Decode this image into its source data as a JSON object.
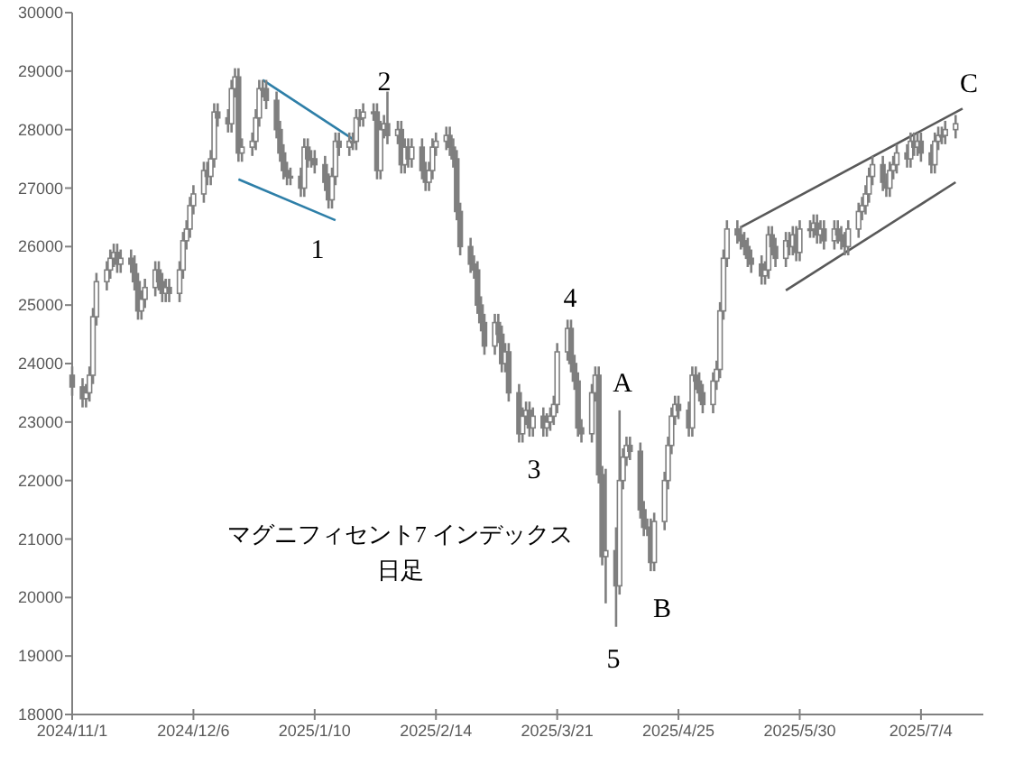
{
  "chart_data": {
    "type": "candlestick",
    "title": "マグニフィセント7 インデックス",
    "subtitle": "日足",
    "color": "#7f7f7f",
    "xlim": [
      "2024-11-01",
      "2025-07-22"
    ],
    "xticks": [
      {
        "value": "2024-11-01",
        "label": "2024/11/1"
      },
      {
        "value": "2024-12-06",
        "label": "2024/12/6"
      },
      {
        "value": "2025-01-10",
        "label": "2025/1/10"
      },
      {
        "value": "2025-02-14",
        "label": "2025/2/14"
      },
      {
        "value": "2025-03-21",
        "label": "2025/3/21"
      },
      {
        "value": "2025-04-25",
        "label": "2025/4/25"
      },
      {
        "value": "2025-05-30",
        "label": "2025/5/30"
      },
      {
        "value": "2025-07-04",
        "label": "2025/7/4"
      }
    ],
    "ylim": [
      18000,
      30000
    ],
    "yticks": [
      18000,
      19000,
      20000,
      21000,
      22000,
      23000,
      24000,
      25000,
      26000,
      27000,
      28000,
      29000,
      30000
    ],
    "x": [
      "2024-11-01",
      "2024-11-04",
      "2024-11-05",
      "2024-11-06",
      "2024-11-07",
      "2024-11-08",
      "2024-11-11",
      "2024-11-12",
      "2024-11-13",
      "2024-11-14",
      "2024-11-15",
      "2024-11-18",
      "2024-11-19",
      "2024-11-20",
      "2024-11-21",
      "2024-11-22",
      "2024-11-25",
      "2024-11-26",
      "2024-11-27",
      "2024-11-28",
      "2024-11-29",
      "2024-12-02",
      "2024-12-03",
      "2024-12-04",
      "2024-12-05",
      "2024-12-06",
      "2024-12-09",
      "2024-12-10",
      "2024-12-11",
      "2024-12-12",
      "2024-12-13",
      "2024-12-16",
      "2024-12-17",
      "2024-12-18",
      "2024-12-19",
      "2024-12-20",
      "2024-12-23",
      "2024-12-24",
      "2024-12-25",
      "2024-12-26",
      "2024-12-27",
      "2024-12-30",
      "2024-12-31",
      "2025-01-01",
      "2025-01-02",
      "2025-01-03",
      "2025-01-06",
      "2025-01-07",
      "2025-01-08",
      "2025-01-09",
      "2025-01-10",
      "2025-01-13",
      "2025-01-14",
      "2025-01-15",
      "2025-01-16",
      "2025-01-17",
      "2025-01-20",
      "2025-01-21",
      "2025-01-22",
      "2025-01-23",
      "2025-01-24",
      "2025-01-27",
      "2025-01-28",
      "2025-01-29",
      "2025-01-30",
      "2025-01-31",
      "2025-02-03",
      "2025-02-04",
      "2025-02-05",
      "2025-02-06",
      "2025-02-07",
      "2025-02-10",
      "2025-02-11",
      "2025-02-12",
      "2025-02-13",
      "2025-02-14",
      "2025-02-17",
      "2025-02-18",
      "2025-02-19",
      "2025-02-20",
      "2025-02-21",
      "2025-02-24",
      "2025-02-25",
      "2025-02-26",
      "2025-02-27",
      "2025-02-28",
      "2025-03-03",
      "2025-03-04",
      "2025-03-05",
      "2025-03-06",
      "2025-03-07",
      "2025-03-10",
      "2025-03-11",
      "2025-03-12",
      "2025-03-13",
      "2025-03-14",
      "2025-03-17",
      "2025-03-18",
      "2025-03-19",
      "2025-03-20",
      "2025-03-21",
      "2025-03-24",
      "2025-03-25",
      "2025-03-26",
      "2025-03-27",
      "2025-03-28",
      "2025-03-31",
      "2025-04-01",
      "2025-04-02",
      "2025-04-03",
      "2025-04-04",
      "2025-04-07",
      "2025-04-08",
      "2025-04-09",
      "2025-04-10",
      "2025-04-11",
      "2025-04-14",
      "2025-04-15",
      "2025-04-16",
      "2025-04-17",
      "2025-04-18",
      "2025-04-21",
      "2025-04-22",
      "2025-04-23",
      "2025-04-24",
      "2025-04-25",
      "2025-04-28",
      "2025-04-29",
      "2025-04-30",
      "2025-05-01",
      "2025-05-02",
      "2025-05-05",
      "2025-05-06",
      "2025-05-07",
      "2025-05-08",
      "2025-05-09",
      "2025-05-12",
      "2025-05-13",
      "2025-05-14",
      "2025-05-15",
      "2025-05-16",
      "2025-05-19",
      "2025-05-20",
      "2025-05-21",
      "2025-05-22",
      "2025-05-23",
      "2025-05-26",
      "2025-05-27",
      "2025-05-28",
      "2025-05-29",
      "2025-05-30",
      "2025-06-02",
      "2025-06-03",
      "2025-06-04",
      "2025-06-05",
      "2025-06-06",
      "2025-06-09",
      "2025-06-10",
      "2025-06-11",
      "2025-06-12",
      "2025-06-13",
      "2025-06-16",
      "2025-06-17",
      "2025-06-18",
      "2025-06-19",
      "2025-06-20",
      "2025-06-23",
      "2025-06-24",
      "2025-06-25",
      "2025-06-26",
      "2025-06-27",
      "2025-06-30",
      "2025-07-01",
      "2025-07-02",
      "2025-07-03",
      "2025-07-04",
      "2025-07-07",
      "2025-07-08",
      "2025-07-09",
      "2025-07-10",
      "2025-07-11",
      "2025-07-14"
    ],
    "ohlc": [
      [
        23800,
        23950,
        23450,
        23600
      ],
      [
        23600,
        23750,
        23250,
        23400
      ],
      [
        23400,
        23650,
        23250,
        23500
      ],
      [
        23500,
        23950,
        23350,
        23800
      ],
      [
        23800,
        24950,
        23650,
        24800
      ],
      [
        24800,
        25550,
        24650,
        25400
      ],
      [
        25400,
        25750,
        25250,
        25600
      ],
      [
        25600,
        25950,
        25450,
        25800
      ],
      [
        25800,
        26050,
        25650,
        25900
      ],
      [
        25900,
        26050,
        25550,
        25700
      ],
      [
        25700,
        25950,
        25550,
        25800
      ],
      [
        25800,
        25950,
        25550,
        25700
      ],
      [
        25700,
        25850,
        25250,
        25400
      ],
      [
        25400,
        25550,
        24750,
        24900
      ],
      [
        24900,
        25250,
        24750,
        25100
      ],
      [
        25100,
        25450,
        24950,
        25300
      ],
      [
        25300,
        25750,
        25150,
        25600
      ],
      [
        25600,
        25750,
        25250,
        25400
      ],
      [
        25400,
        25550,
        25050,
        25200
      ],
      [
        25200,
        25450,
        25050,
        25300
      ],
      [
        25300,
        25450,
        25050,
        25200
      ],
      [
        25200,
        25750,
        25050,
        25600
      ],
      [
        25600,
        26250,
        25450,
        26100
      ],
      [
        26100,
        26450,
        25950,
        26300
      ],
      [
        26300,
        26850,
        26150,
        26700
      ],
      [
        26700,
        27050,
        26550,
        26900
      ],
      [
        26900,
        27450,
        26750,
        27300
      ],
      [
        27300,
        27450,
        27050,
        27200
      ],
      [
        27200,
        27650,
        27050,
        27500
      ],
      [
        27500,
        28450,
        27350,
        28300
      ],
      [
        28300,
        28450,
        28050,
        28200
      ],
      [
        28200,
        28350,
        27950,
        28100
      ],
      [
        28100,
        28850,
        27950,
        28700
      ],
      [
        28700,
        29050,
        28550,
        28900
      ],
      [
        28900,
        29050,
        27450,
        27600
      ],
      [
        27600,
        27850,
        27450,
        27700
      ],
      [
        27700,
        27950,
        27550,
        27800
      ],
      [
        27800,
        28350,
        27650,
        28200
      ],
      [
        28200,
        28850,
        28050,
        28700
      ],
      [
        28700,
        28850,
        28550,
        28700
      ],
      [
        28700,
        28850,
        28350,
        28500
      ],
      [
        28500,
        28650,
        27850,
        28000
      ],
      [
        28000,
        28150,
        27450,
        27600
      ],
      [
        27600,
        27750,
        27150,
        27300
      ],
      [
        27300,
        27450,
        27050,
        27200
      ],
      [
        27200,
        27350,
        27050,
        27200
      ],
      [
        27200,
        27350,
        26850,
        27000
      ],
      [
        27000,
        27850,
        26850,
        27700
      ],
      [
        27700,
        27850,
        27350,
        27500
      ],
      [
        27500,
        27650,
        27350,
        27500
      ],
      [
        27500,
        27650,
        27250,
        27400
      ],
      [
        27400,
        27550,
        26950,
        27100
      ],
      [
        27100,
        27250,
        26650,
        26800
      ],
      [
        26800,
        27350,
        26650,
        27200
      ],
      [
        27200,
        27950,
        27050,
        27800
      ],
      [
        27800,
        27950,
        27550,
        27700
      ],
      [
        27700,
        27950,
        27550,
        27800
      ],
      [
        27800,
        27950,
        27650,
        27800
      ],
      [
        27800,
        28350,
        27650,
        28200
      ],
      [
        28200,
        28350,
        28050,
        28200
      ],
      [
        28200,
        28450,
        28050,
        28300
      ],
      [
        28300,
        28450,
        28150,
        28300
      ],
      [
        28300,
        28450,
        27150,
        27300
      ],
      [
        27300,
        28150,
        27150,
        28000
      ],
      [
        28000,
        28250,
        27850,
        28100
      ],
      [
        28100,
        28650,
        27750,
        27900
      ],
      [
        27900,
        28150,
        27750,
        28000
      ],
      [
        28000,
        28150,
        27250,
        27400
      ],
      [
        27400,
        27850,
        27250,
        27700
      ],
      [
        27700,
        27850,
        27350,
        27500
      ],
      [
        27500,
        27850,
        27350,
        27700
      ],
      [
        27700,
        27850,
        27150,
        27300
      ],
      [
        27300,
        27450,
        26950,
        27100
      ],
      [
        27100,
        27450,
        26950,
        27300
      ],
      [
        27300,
        27850,
        27150,
        27700
      ],
      [
        27700,
        27950,
        27550,
        27800
      ],
      [
        27800,
        28050,
        27650,
        27900
      ],
      [
        27900,
        28050,
        27550,
        27700
      ],
      [
        27700,
        27850,
        27350,
        27500
      ],
      [
        27500,
        27650,
        26450,
        26600
      ],
      [
        26600,
        26750,
        25850,
        26000
      ],
      [
        26000,
        26150,
        25550,
        25700
      ],
      [
        25700,
        25850,
        25450,
        25600
      ],
      [
        25600,
        25750,
        24850,
        25000
      ],
      [
        25000,
        25150,
        24550,
        24700
      ],
      [
        24700,
        24850,
        24150,
        24300
      ],
      [
        24300,
        24850,
        24150,
        24700
      ],
      [
        24700,
        24850,
        24350,
        24500
      ],
      [
        24500,
        24650,
        23850,
        24000
      ],
      [
        24000,
        24350,
        23850,
        24200
      ],
      [
        24200,
        24350,
        23350,
        23500
      ],
      [
        23500,
        23650,
        22650,
        22800
      ],
      [
        22800,
        23250,
        22650,
        23100
      ],
      [
        23100,
        23350,
        22950,
        23200
      ],
      [
        23200,
        23350,
        22750,
        22900
      ],
      [
        22900,
        23250,
        22750,
        23100
      ],
      [
        23100,
        23250,
        22750,
        22900
      ],
      [
        22900,
        23150,
        22750,
        23000
      ],
      [
        23000,
        23250,
        22850,
        23100
      ],
      [
        23100,
        23450,
        22950,
        23300
      ],
      [
        23300,
        24350,
        23150,
        24200
      ],
      [
        24200,
        24750,
        24050,
        24600
      ],
      [
        24600,
        24750,
        23850,
        24000
      ],
      [
        24000,
        24150,
        23550,
        23700
      ],
      [
        23700,
        23850,
        22750,
        22900
      ],
      [
        22900,
        23050,
        22650,
        22800
      ],
      [
        22800,
        23650,
        22650,
        23500
      ],
      [
        23500,
        23950,
        23350,
        23800
      ],
      [
        23800,
        23950,
        21950,
        22100
      ],
      [
        22100,
        22250,
        20550,
        20700
      ],
      [
        20700,
        22200,
        19900,
        20800
      ],
      [
        20800,
        21200,
        19500,
        20200
      ],
      [
        20200,
        23200,
        20050,
        22000
      ],
      [
        22000,
        22550,
        21850,
        22400
      ],
      [
        22400,
        22750,
        22250,
        22600
      ],
      [
        22600,
        22750,
        22350,
        22500
      ],
      [
        22500,
        22650,
        21350,
        21500
      ],
      [
        21500,
        21650,
        21050,
        21200
      ],
      [
        21200,
        21350,
        21050,
        21200
      ],
      [
        21200,
        21350,
        20450,
        20600
      ],
      [
        20600,
        21450,
        20450,
        21300
      ],
      [
        21300,
        22150,
        21150,
        22000
      ],
      [
        22000,
        22750,
        21850,
        22600
      ],
      [
        22600,
        23250,
        22450,
        23100
      ],
      [
        23100,
        23450,
        22950,
        23300
      ],
      [
        23300,
        23450,
        23050,
        23200
      ],
      [
        23200,
        23350,
        22750,
        22900
      ],
      [
        22900,
        23950,
        22750,
        23800
      ],
      [
        23800,
        23950,
        23550,
        23700
      ],
      [
        23700,
        23850,
        23350,
        23500
      ],
      [
        23500,
        23650,
        23150,
        23300
      ],
      [
        23300,
        23850,
        23150,
        23700
      ],
      [
        23700,
        24050,
        23550,
        23900
      ],
      [
        23900,
        25050,
        23750,
        24900
      ],
      [
        24900,
        25950,
        24750,
        25800
      ],
      [
        25800,
        26450,
        25650,
        26300
      ],
      [
        26300,
        26450,
        26050,
        26200
      ],
      [
        26200,
        26350,
        25950,
        26100
      ],
      [
        26100,
        26250,
        25850,
        26000
      ],
      [
        26000,
        26150,
        25650,
        25800
      ],
      [
        25800,
        25950,
        25550,
        25700
      ],
      [
        25700,
        25850,
        25350,
        25500
      ],
      [
        25500,
        25750,
        25350,
        25600
      ],
      [
        25600,
        26350,
        25450,
        26200
      ],
      [
        26200,
        26350,
        25850,
        26000
      ],
      [
        26000,
        26150,
        25650,
        25800
      ],
      [
        25800,
        26250,
        25650,
        26100
      ],
      [
        26100,
        26250,
        25850,
        26000
      ],
      [
        26000,
        26350,
        25850,
        26200
      ],
      [
        26200,
        26350,
        25750,
        25900
      ],
      [
        25900,
        26450,
        25750,
        26300
      ],
      [
        26300,
        26450,
        26150,
        26300
      ],
      [
        26300,
        26550,
        26150,
        26400
      ],
      [
        26400,
        26550,
        26050,
        26200
      ],
      [
        26200,
        26450,
        26050,
        26300
      ],
      [
        26300,
        26450,
        25950,
        26100
      ],
      [
        26100,
        26450,
        25950,
        26300
      ],
      [
        26300,
        26450,
        26050,
        26200
      ],
      [
        26200,
        26350,
        25950,
        26100
      ],
      [
        26100,
        26250,
        25850,
        26000
      ],
      [
        26000,
        26450,
        25850,
        26300
      ],
      [
        26300,
        26750,
        26150,
        26600
      ],
      [
        26600,
        26850,
        26450,
        26700
      ],
      [
        26700,
        27050,
        26550,
        26900
      ],
      [
        26900,
        27350,
        26750,
        27200
      ],
      [
        27200,
        27550,
        27050,
        27400
      ],
      [
        27400,
        27550,
        26950,
        27100
      ],
      [
        27100,
        27250,
        26850,
        27000
      ],
      [
        27000,
        27450,
        26850,
        27300
      ],
      [
        27300,
        27550,
        27150,
        27400
      ],
      [
        27400,
        27750,
        27250,
        27600
      ],
      [
        27600,
        27750,
        27350,
        27500
      ],
      [
        27500,
        27950,
        27350,
        27800
      ],
      [
        27800,
        27950,
        27550,
        27700
      ],
      [
        27700,
        27950,
        27550,
        27800
      ],
      [
        27800,
        27950,
        27450,
        27600
      ],
      [
        27600,
        27750,
        27250,
        27400
      ],
      [
        27400,
        27950,
        27250,
        27800
      ],
      [
        27800,
        28050,
        27650,
        27900
      ],
      [
        27900,
        28050,
        27750,
        27900
      ],
      [
        27900,
        28150,
        27750,
        28000
      ],
      [
        28000,
        28250,
        27850,
        28100
      ]
    ],
    "series": [
      {
        "type": "line",
        "color": "#2e7fa8",
        "x": [
          "2024-12-26",
          "2025-01-22"
        ],
        "values": [
          28850,
          27800
        ]
      },
      {
        "type": "line",
        "color": "#2e7fa8",
        "x": [
          "2024-12-19",
          "2025-01-16"
        ],
        "values": [
          27150,
          26450
        ]
      },
      {
        "type": "line",
        "color": "#595959",
        "x": [
          "2025-05-13",
          "2025-07-16"
        ],
        "values": [
          26330,
          28360
        ]
      },
      {
        "type": "line",
        "color": "#595959",
        "x": [
          "2025-05-26",
          "2025-07-14"
        ],
        "values": [
          25250,
          27100
        ]
      }
    ],
    "annotations": [
      "1",
      "2",
      "3",
      "4",
      "5",
      "A",
      "B",
      "C"
    ]
  }
}
